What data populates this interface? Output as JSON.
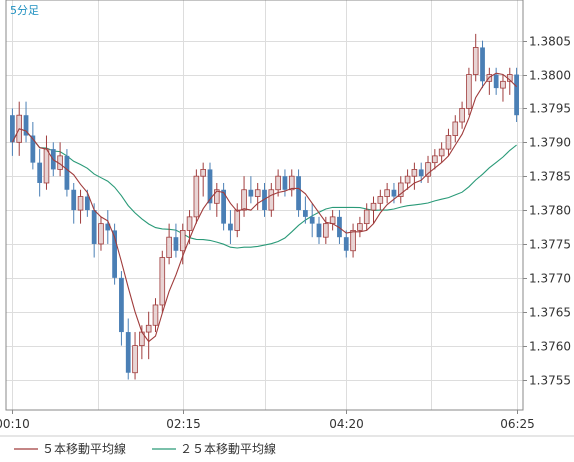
{
  "chart_data": {
    "type": "candlestick",
    "timeframe_label": "5分足",
    "x_tick_labels": [
      "00:10",
      "02:15",
      "04:20",
      "06:25"
    ],
    "y_ticks": [
      1.3755,
      1.376,
      1.3765,
      1.377,
      1.3775,
      1.378,
      1.3785,
      1.379,
      1.3795,
      1.38,
      1.3805
    ],
    "ylim": [
      1.37505,
      1.3811
    ],
    "grid": true,
    "legend_position": "bottom-left",
    "colors": {
      "up": "#e8d4d4",
      "up_border": "#a03c3c",
      "down": "#4a7fb5",
      "ma5": "#a03c3c",
      "ma25": "#2a9a78",
      "grid": "#dddddd"
    },
    "series": [
      {
        "name": "５本移動平均線",
        "kind": "ma",
        "period": 5
      },
      {
        "name": "２５本移動平均線",
        "kind": "ma",
        "period": 25
      }
    ],
    "candles": [
      [
        1.3794,
        1.3795,
        1.3788,
        1.379
      ],
      [
        1.379,
        1.3796,
        1.3788,
        1.3794
      ],
      [
        1.3794,
        1.3796,
        1.379,
        1.3791
      ],
      [
        1.3791,
        1.3793,
        1.3786,
        1.3787
      ],
      [
        1.3787,
        1.3789,
        1.3782,
        1.3784
      ],
      [
        1.3784,
        1.3791,
        1.3783,
        1.3789
      ],
      [
        1.3789,
        1.379,
        1.3785,
        1.3786
      ],
      [
        1.3786,
        1.379,
        1.3785,
        1.3788
      ],
      [
        1.3788,
        1.3789,
        1.3782,
        1.3783
      ],
      [
        1.3783,
        1.3784,
        1.3778,
        1.378
      ],
      [
        1.378,
        1.3783,
        1.3778,
        1.3782
      ],
      [
        1.3782,
        1.3783,
        1.3779,
        1.378
      ],
      [
        1.378,
        1.3781,
        1.3773,
        1.3775
      ],
      [
        1.3775,
        1.3779,
        1.3774,
        1.3778
      ],
      [
        1.3778,
        1.378,
        1.3775,
        1.3777
      ],
      [
        1.3777,
        1.3778,
        1.3769,
        1.377
      ],
      [
        1.377,
        1.3771,
        1.376,
        1.3762
      ],
      [
        1.3762,
        1.3764,
        1.3755,
        1.3756
      ],
      [
        1.3756,
        1.3762,
        1.3755,
        1.376
      ],
      [
        1.376,
        1.3763,
        1.3758,
        1.3762
      ],
      [
        1.3762,
        1.3765,
        1.3758,
        1.3763
      ],
      [
        1.3763,
        1.3767,
        1.3762,
        1.3766
      ],
      [
        1.3766,
        1.3774,
        1.3765,
        1.3773
      ],
      [
        1.3773,
        1.3778,
        1.3772,
        1.3776
      ],
      [
        1.3776,
        1.3778,
        1.3773,
        1.3774
      ],
      [
        1.3774,
        1.3778,
        1.3772,
        1.3777
      ],
      [
        1.3777,
        1.378,
        1.3775,
        1.3779
      ],
      [
        1.3779,
        1.3786,
        1.3778,
        1.3785
      ],
      [
        1.3785,
        1.3787,
        1.3782,
        1.3786
      ],
      [
        1.3786,
        1.3787,
        1.378,
        1.3781
      ],
      [
        1.3781,
        1.3784,
        1.3779,
        1.3783
      ],
      [
        1.3783,
        1.3784,
        1.3777,
        1.3778
      ],
      [
        1.3778,
        1.378,
        1.3775,
        1.3777
      ],
      [
        1.3777,
        1.3781,
        1.3776,
        1.378
      ],
      [
        1.378,
        1.3785,
        1.3779,
        1.3783
      ],
      [
        1.3783,
        1.3785,
        1.3781,
        1.3782
      ],
      [
        1.3782,
        1.3784,
        1.378,
        1.3783
      ],
      [
        1.3783,
        1.3784,
        1.3779,
        1.378
      ],
      [
        1.378,
        1.3784,
        1.3779,
        1.3783
      ],
      [
        1.3783,
        1.3786,
        1.3782,
        1.3785
      ],
      [
        1.3785,
        1.3786,
        1.3782,
        1.3783
      ],
      [
        1.3783,
        1.3786,
        1.3782,
        1.3785
      ],
      [
        1.3785,
        1.3786,
        1.3779,
        1.378
      ],
      [
        1.378,
        1.3782,
        1.3778,
        1.3779
      ],
      [
        1.3779,
        1.3781,
        1.3776,
        1.3778
      ],
      [
        1.3778,
        1.3779,
        1.3775,
        1.3776
      ],
      [
        1.3776,
        1.3779,
        1.3775,
        1.3778
      ],
      [
        1.3778,
        1.378,
        1.3777,
        1.3779
      ],
      [
        1.3779,
        1.378,
        1.3775,
        1.3776
      ],
      [
        1.3776,
        1.3777,
        1.3773,
        1.3774
      ],
      [
        1.3774,
        1.3778,
        1.3773,
        1.3777
      ],
      [
        1.3777,
        1.3779,
        1.3776,
        1.3778
      ],
      [
        1.3778,
        1.3781,
        1.3777,
        1.378
      ],
      [
        1.378,
        1.3782,
        1.3778,
        1.3781
      ],
      [
        1.3781,
        1.3783,
        1.378,
        1.3782
      ],
      [
        1.3782,
        1.3784,
        1.3781,
        1.3783
      ],
      [
        1.3783,
        1.3784,
        1.3781,
        1.3782
      ],
      [
        1.3782,
        1.3785,
        1.3781,
        1.3784
      ],
      [
        1.3784,
        1.3786,
        1.3783,
        1.3785
      ],
      [
        1.3785,
        1.3787,
        1.3783,
        1.3786
      ],
      [
        1.3786,
        1.3787,
        1.3784,
        1.3785
      ],
      [
        1.3785,
        1.3788,
        1.3784,
        1.3787
      ],
      [
        1.3787,
        1.3789,
        1.3786,
        1.3788
      ],
      [
        1.3788,
        1.379,
        1.3787,
        1.3789
      ],
      [
        1.3789,
        1.3792,
        1.3788,
        1.3791
      ],
      [
        1.3791,
        1.3794,
        1.379,
        1.3793
      ],
      [
        1.3793,
        1.3796,
        1.3792,
        1.3795
      ],
      [
        1.3795,
        1.3801,
        1.3794,
        1.38
      ],
      [
        1.38,
        1.3806,
        1.3799,
        1.3804
      ],
      [
        1.3804,
        1.3805,
        1.3798,
        1.3799
      ],
      [
        1.3799,
        1.3801,
        1.3797,
        1.38
      ],
      [
        1.38,
        1.3801,
        1.3797,
        1.3798
      ],
      [
        1.3798,
        1.38,
        1.3796,
        1.3799
      ],
      [
        1.3799,
        1.3801,
        1.3797,
        1.38
      ],
      [
        1.38,
        1.3801,
        1.3793,
        1.3794
      ]
    ]
  }
}
